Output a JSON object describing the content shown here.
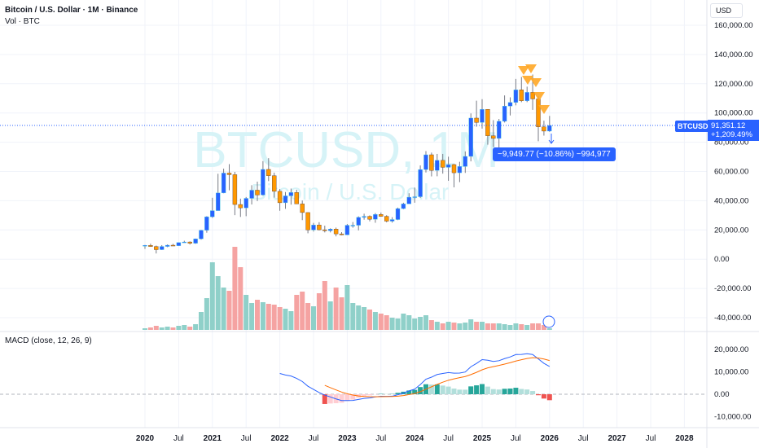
{
  "header": {
    "title": "Bitcoin / U.S. Dollar · 1M · Binance",
    "volume_label": "Vol · BTC",
    "currency": "USD",
    "macd_label": "MACD (close, 12, 26, 9)"
  },
  "watermark": {
    "symbol": "BTCUSD, 1M",
    "name": "Bitcoin / U.S. Dollar"
  },
  "price": {
    "symbol": "BTCUSD",
    "last": "91,351.12",
    "change": "+1,209.49%"
  },
  "tooltip": "−9,949.77 (−10.86%) −994,977",
  "colors": {
    "up": "#2962ff",
    "down": "#ff9800",
    "vol_up": "#8fd0c9",
    "vol_down": "#f5a3a2",
    "macd": "#2962ff",
    "signal": "#ff6d00",
    "hist_up_strong": "#26a69a",
    "hist_up_weak": "#b2dfdb",
    "hist_down_strong": "#ef5350",
    "hist_down_weak": "#ffcdd2"
  },
  "chart_data": {
    "type": "candlestick",
    "start": "2020-01",
    "interval": "1M",
    "unit": "thousand USD",
    "close": [
      9.35,
      8.55,
      6.4,
      8.6,
      9.45,
      9.1,
      11.3,
      11.65,
      10.8,
      13.8,
      19.7,
      28.9,
      33.1,
      45.2,
      58.8,
      57.7,
      37.3,
      35.0,
      41.5,
      47.1,
      43.8,
      61.3,
      57.0,
      46.3,
      38.5,
      43.2,
      45.5,
      37.7,
      31.8,
      19.9,
      23.3,
      20.0,
      19.4,
      20.5,
      17.2,
      16.5,
      23.1,
      23.1,
      28.5,
      29.2,
      27.2,
      30.5,
      29.2,
      25.9,
      27.0,
      34.5,
      37.7,
      42.3,
      42.6,
      61.2,
      71.3,
      60.6,
      67.5,
      62.7,
      64.6,
      59.0,
      63.3,
      70.2,
      96.4,
      93.4,
      102.4,
      84.3,
      82.5,
      94.2,
      104.6,
      107.1,
      115.7,
      108.2,
      114.0,
      109.5,
      90.4,
      87.5,
      91.35
    ],
    "high": [
      9.6,
      10.5,
      9.2,
      9.5,
      10.0,
      10.4,
      11.4,
      12.5,
      12.1,
      14.0,
      19.9,
      29.3,
      41.9,
      58.3,
      61.8,
      64.9,
      59.6,
      41.3,
      42.4,
      50.5,
      52.9,
      67.0,
      69.0,
      59.1,
      47.9,
      45.8,
      48.2,
      47.4,
      40.0,
      31.9,
      24.7,
      25.2,
      22.8,
      21.0,
      21.5,
      18.4,
      23.9,
      25.3,
      29.2,
      31.0,
      29.9,
      31.4,
      31.8,
      30.0,
      28.6,
      35.2,
      38.5,
      45.0,
      48.9,
      64.0,
      73.8,
      72.8,
      71.9,
      71.9,
      70.0,
      65.1,
      66.5,
      73.6,
      99.6,
      108.3,
      109.3,
      102.5,
      95.0,
      95.8,
      111.9,
      110.6,
      123.2,
      124.5,
      117.9,
      126.2,
      111.3,
      94.6,
      97.9
    ],
    "low": [
      6.9,
      8.4,
      3.8,
      6.2,
      8.1,
      8.9,
      9.0,
      11.1,
      9.9,
      10.4,
      13.2,
      18.0,
      28.1,
      33.4,
      45.0,
      47.0,
      30.0,
      28.8,
      29.3,
      37.3,
      39.6,
      43.3,
      53.3,
      42.0,
      33.0,
      34.3,
      37.2,
      37.6,
      26.6,
      17.6,
      18.8,
      19.6,
      18.2,
      18.2,
      15.5,
      16.3,
      16.5,
      21.4,
      19.6,
      26.9,
      25.8,
      24.8,
      28.9,
      25.1,
      24.9,
      26.6,
      34.1,
      37.6,
      38.5,
      41.8,
      59.2,
      56.5,
      56.6,
      58.4,
      53.5,
      49.0,
      52.6,
      58.9,
      66.8,
      90.5,
      89.2,
      78.2,
      76.6,
      74.4,
      93.4,
      98.2,
      105.1,
      107.3,
      107.3,
      102.0,
      80.6,
      84.4,
      87.0
    ],
    "volume": [
      2,
      3,
      5,
      3,
      4,
      3,
      5,
      6,
      4,
      7,
      22,
      39,
      83,
      66,
      52,
      48,
      102,
      77,
      43,
      33,
      37,
      34,
      32,
      31,
      28,
      26,
      23,
      43,
      47,
      33,
      29,
      45,
      60,
      35,
      52,
      40,
      55,
      33,
      30,
      28,
      25,
      22,
      20,
      18,
      15,
      14,
      20,
      18,
      14,
      16,
      18,
      12,
      10,
      8,
      10,
      9,
      8,
      9,
      13,
      10,
      10,
      8,
      8,
      8,
      7,
      6,
      8,
      7,
      6,
      8,
      8,
      6,
      2
    ],
    "price_axis": [
      "160,000.00",
      "140,000.00",
      "120,000.00",
      "100,000.00",
      "80,000.00",
      "60,000.00",
      "40,000.00",
      "20,000.00",
      "0.00",
      "-20,000.00",
      "-40,000.00"
    ],
    "macd_axis": [
      "20,000.00",
      "10,000.00",
      "0.00",
      "-10,000.00"
    ],
    "time_axis": [
      "2020",
      "Jul",
      "2021",
      "Jul",
      "2022",
      "Jul",
      "2023",
      "Jul",
      "2024",
      "Jul",
      "2025",
      "Jul",
      "2026",
      "Jul",
      "2027",
      "Jul",
      "2028"
    ]
  }
}
